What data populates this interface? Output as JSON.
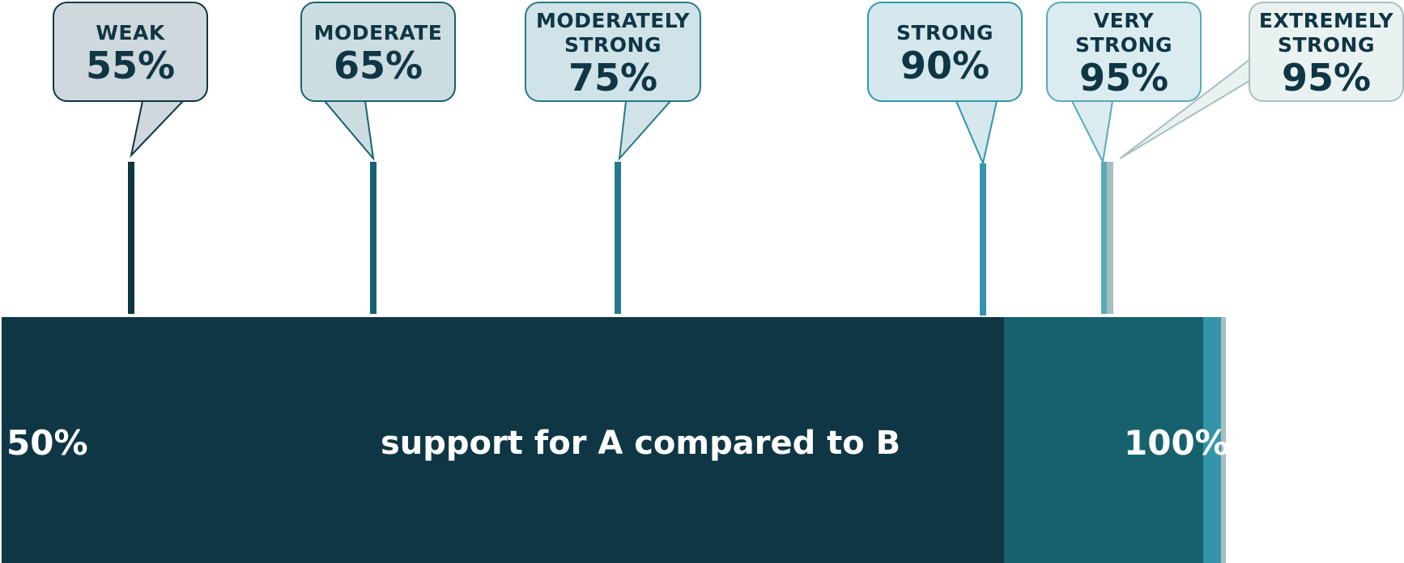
{
  "scale": {
    "start_label": "50%",
    "end_label": "100%",
    "caption": "support for A compared to B"
  },
  "levels": [
    {
      "label": "WEAK",
      "value": 55,
      "value_label": "55%",
      "color": "#0f3644",
      "bubble_fill": "#cfd8dc",
      "bubble_border": "#0f3644"
    },
    {
      "label": "MODERATE",
      "value": 65,
      "value_label": "65%",
      "color": "#17616f",
      "bubble_fill": "#ccdde2",
      "bubble_border": "#17616f"
    },
    {
      "label": "MODERATELY\nSTRONG",
      "value": 75,
      "value_label": "75%",
      "color": "#25798a",
      "bubble_fill": "#d0e3e8",
      "bubble_border": "#25798a"
    },
    {
      "label": "STRONG",
      "value": 90,
      "value_label": "90%",
      "color": "#3395aa",
      "bubble_fill": "#d4e8ee",
      "bubble_border": "#3395aa"
    },
    {
      "label": "VERY\nSTRONG",
      "value": 95,
      "value_label": "95%",
      "color": "#5aa9b9",
      "bubble_fill": "#dbecf1",
      "bubble_border": "#5aa9b9"
    },
    {
      "label": "EXTREMELY\nSTRONG",
      "value": 95,
      "value_label": "95%",
      "color": "#a6bfc0",
      "bubble_fill": "#eaf1f1",
      "bubble_border": "#a6bfc0"
    }
  ],
  "colors": {
    "bar_dark": "#0f3644",
    "bar_mid": "#17616f",
    "bar_light": "#3395aa",
    "bar_lightest": "#a6bfc0"
  }
}
